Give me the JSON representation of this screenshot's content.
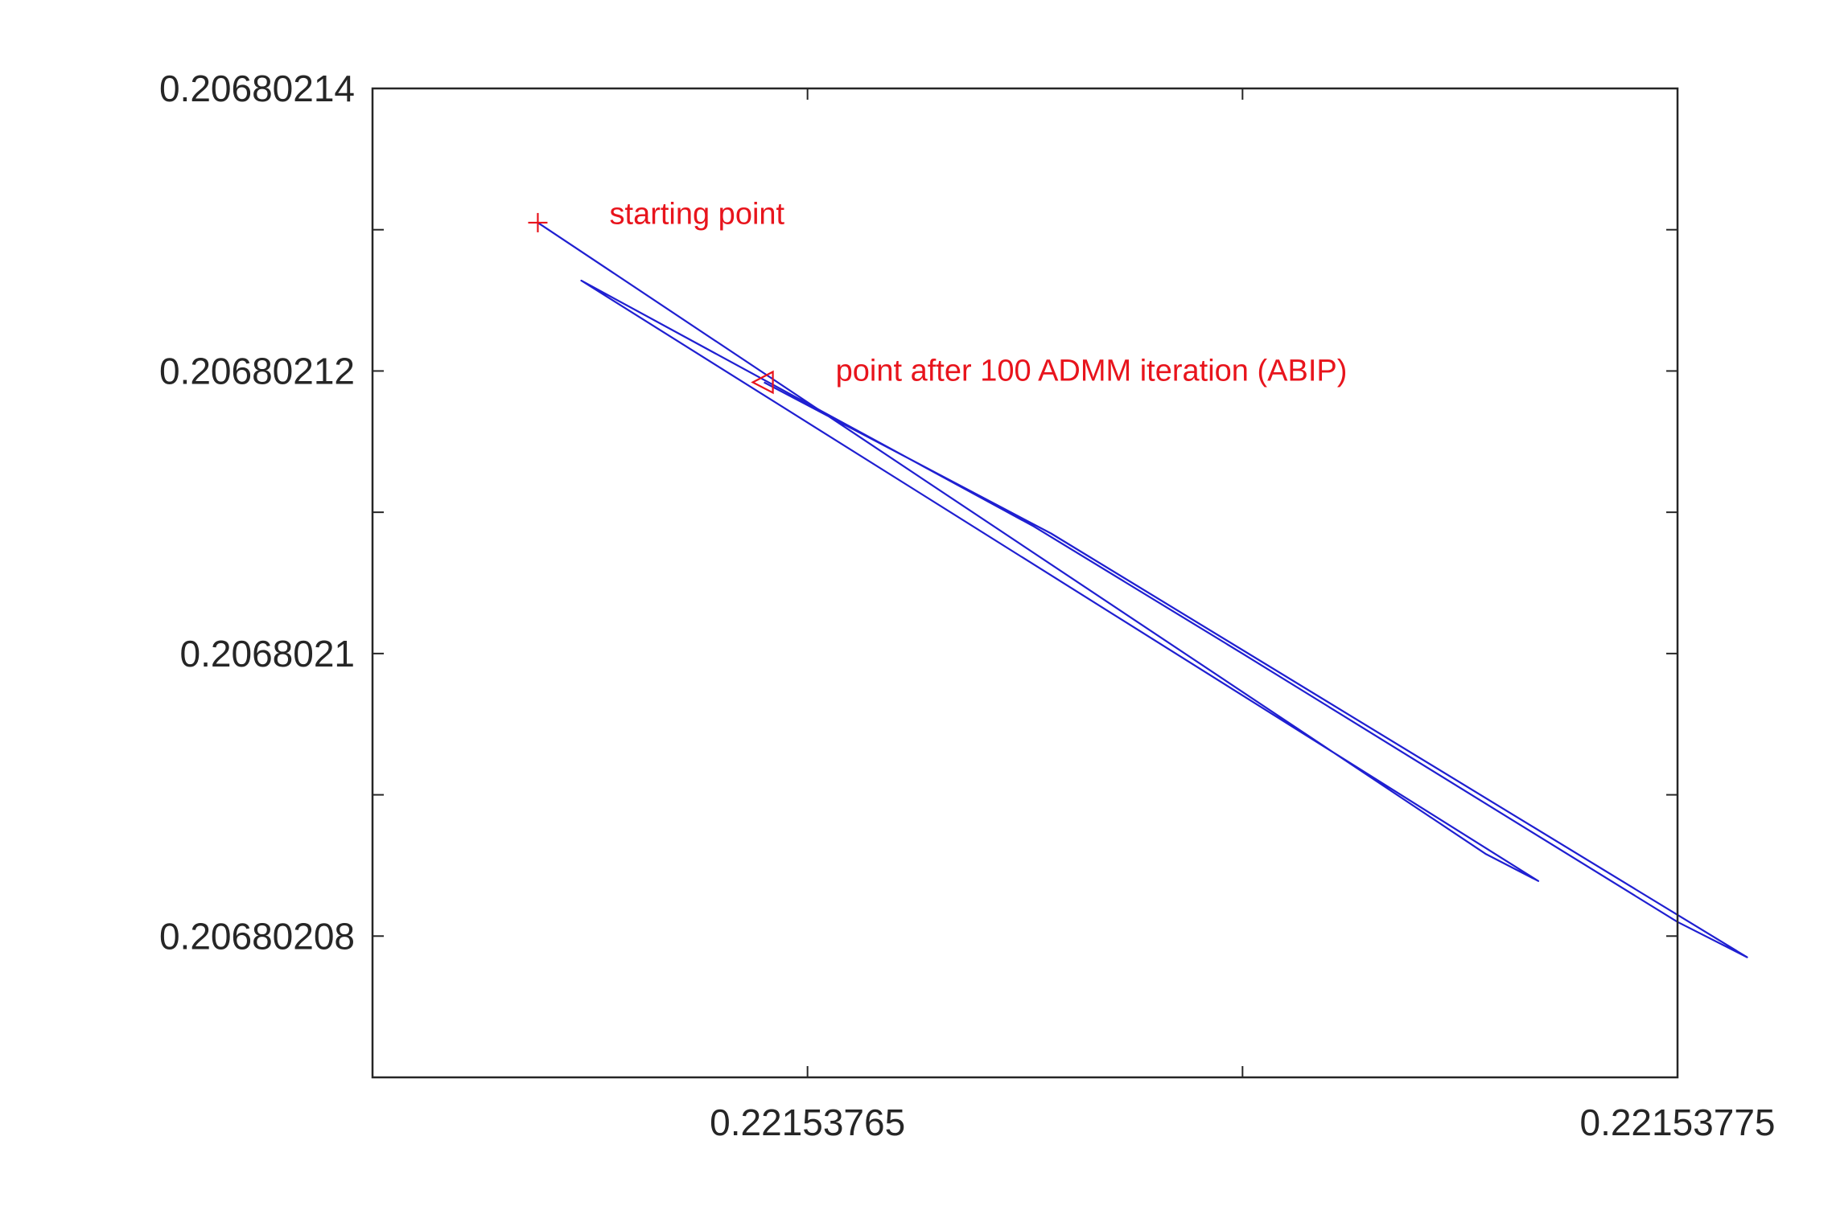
{
  "chart_data": {
    "type": "line",
    "title": "",
    "xlabel": "",
    "ylabel": "",
    "xlim": [
      0.2215376,
      0.22153775
    ],
    "ylim": [
      0.20680207,
      0.20680214
    ],
    "grid": false,
    "legend": "none",
    "x_ticks": [
      0.2215376,
      0.22153765,
      0.2215377,
      0.22153775
    ],
    "x_tick_labels": [
      "",
      "0.22153765",
      "",
      "0.22153775"
    ],
    "y_ticks": [
      0.20680208,
      0.20680209,
      0.2068021,
      0.20680211,
      0.20680212,
      0.20680213,
      0.20680214
    ],
    "y_tick_labels": [
      "0.20680208",
      "",
      "0.2068021",
      "",
      "0.20680212",
      "",
      "0.20680214"
    ],
    "colors": {
      "trajectory": "#1f1fd1",
      "markers": "#e8141c",
      "axes": "#262626"
    },
    "series": [
      {
        "x": [
          0.221537619,
          0.221537728,
          0.221537734,
          0.221537624,
          0.221537676,
          0.2215377,
          0.22153775,
          0.221537758,
          0.221537678,
          0.221537645
        ],
        "y": [
          0.2068021305,
          0.2068020858,
          0.2068020839,
          0.2068021264,
          0.206802109,
          0.2068021,
          0.206802081,
          0.2068020785,
          0.2068021085,
          0.2068021192
        ]
      }
    ],
    "markers": [
      {
        "shape": "plus",
        "x": 0.221537619,
        "y": 0.2068021305
      },
      {
        "shape": "triangle-left",
        "x": 0.221537645,
        "y": 0.2068021192
      }
    ],
    "annotations": [
      {
        "text": "starting point",
        "x": 0.221537624,
        "y": 0.2068021311
      },
      {
        "text": "point after 100 ADMM iteration (ABIP)",
        "x": 0.22153765,
        "y": 0.20680212
      }
    ]
  }
}
